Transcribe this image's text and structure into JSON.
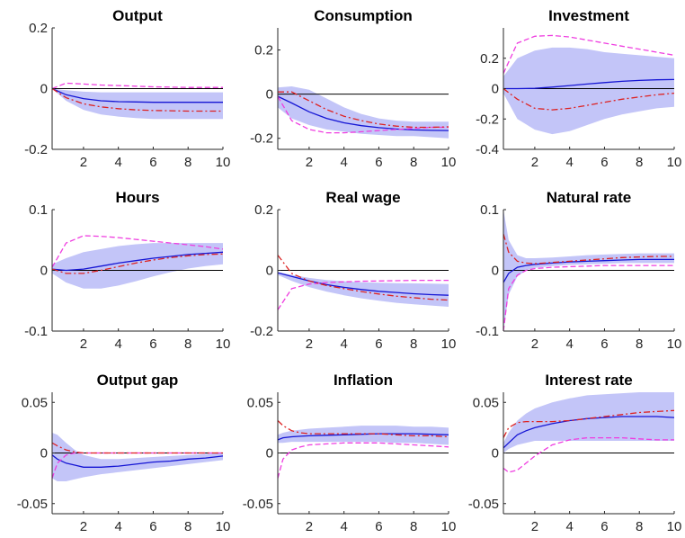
{
  "chart_data": [
    {
      "type": "line",
      "title": "Output",
      "x": [
        0.2,
        1,
        2,
        3,
        4,
        5,
        6,
        7,
        8,
        9,
        10
      ],
      "xlim": [
        0.2,
        10
      ],
      "ylim": [
        -0.2,
        0.2
      ],
      "xticks": [
        2,
        4,
        6,
        8,
        10
      ],
      "yticks": [
        -0.2,
        0,
        0.2
      ],
      "xtick_labels": [
        "2",
        "4",
        "6",
        "8",
        "10"
      ],
      "ytick_labels": [
        "-0.2",
        "0",
        "0.2"
      ],
      "band": {
        "lower": [
          0,
          -0.04,
          -0.07,
          -0.085,
          -0.092,
          -0.097,
          -0.1,
          -0.1,
          -0.1,
          -0.1,
          -0.1
        ],
        "upper": [
          0,
          -0.005,
          -0.01,
          -0.012,
          -0.012,
          -0.012,
          -0.012,
          -0.012,
          -0.012,
          -0.012,
          -0.012
        ]
      },
      "series": [
        {
          "style": "median",
          "values": [
            0,
            -0.02,
            -0.033,
            -0.04,
            -0.043,
            -0.044,
            -0.045,
            -0.045,
            -0.045,
            -0.045,
            -0.045
          ]
        },
        {
          "style": "dashed",
          "values": [
            0,
            0.018,
            0.015,
            0.012,
            0.01,
            0.008,
            0.006,
            0.005,
            0.004,
            0.004,
            0.004
          ]
        },
        {
          "style": "dashdot",
          "values": [
            0,
            -0.03,
            -0.05,
            -0.06,
            -0.066,
            -0.07,
            -0.072,
            -0.073,
            -0.074,
            -0.074,
            -0.074
          ]
        }
      ]
    },
    {
      "type": "line",
      "title": "Consumption",
      "x": [
        0.2,
        1,
        2,
        3,
        4,
        5,
        6,
        7,
        8,
        9,
        10
      ],
      "xlim": [
        0.2,
        10
      ],
      "ylim": [
        -0.25,
        0.3
      ],
      "xticks": [
        2,
        4,
        6,
        8,
        10
      ],
      "yticks": [
        -0.2,
        0,
        0.2
      ],
      "xtick_labels": [
        "2",
        "4",
        "6",
        "8",
        "10"
      ],
      "ytick_labels": [
        "-0.2",
        "0",
        "0.2"
      ],
      "band": {
        "lower": [
          -0.06,
          -0.11,
          -0.14,
          -0.16,
          -0.17,
          -0.18,
          -0.185,
          -0.19,
          -0.19,
          -0.195,
          -0.2
        ],
        "upper": [
          0.03,
          0.035,
          0.02,
          -0.02,
          -0.06,
          -0.09,
          -0.11,
          -0.12,
          -0.125,
          -0.125,
          -0.125
        ]
      },
      "series": [
        {
          "style": "median",
          "values": [
            -0.01,
            -0.04,
            -0.08,
            -0.11,
            -0.13,
            -0.143,
            -0.152,
            -0.158,
            -0.162,
            -0.164,
            -0.165
          ]
        },
        {
          "style": "dashed",
          "values": [
            -0.01,
            -0.12,
            -0.16,
            -0.175,
            -0.175,
            -0.17,
            -0.165,
            -0.16,
            -0.155,
            -0.15,
            -0.15
          ]
        },
        {
          "style": "dashdot",
          "values": [
            0.01,
            0.01,
            -0.03,
            -0.07,
            -0.1,
            -0.12,
            -0.135,
            -0.145,
            -0.15,
            -0.15,
            -0.148
          ]
        }
      ]
    },
    {
      "type": "line",
      "title": "Investment",
      "x": [
        0.2,
        1,
        2,
        3,
        4,
        5,
        6,
        7,
        8,
        9,
        10
      ],
      "xlim": [
        0.2,
        10
      ],
      "ylim": [
        -0.4,
        0.4
      ],
      "xticks": [
        2,
        4,
        6,
        8,
        10
      ],
      "yticks": [
        -0.4,
        -0.2,
        0,
        0.2
      ],
      "xtick_labels": [
        "2",
        "4",
        "6",
        "8",
        "10"
      ],
      "ytick_labels": [
        "-0.4",
        "-0.2",
        "0",
        "0.2"
      ],
      "band": {
        "lower": [
          -0.03,
          -0.2,
          -0.27,
          -0.3,
          -0.28,
          -0.24,
          -0.2,
          -0.17,
          -0.15,
          -0.13,
          -0.12
        ],
        "upper": [
          0.08,
          0.2,
          0.25,
          0.27,
          0.27,
          0.26,
          0.24,
          0.23,
          0.22,
          0.21,
          0.2
        ]
      },
      "series": [
        {
          "style": "median",
          "values": [
            0,
            0,
            0.002,
            0.01,
            0.02,
            0.03,
            0.04,
            0.048,
            0.054,
            0.058,
            0.06
          ]
        },
        {
          "style": "dashed",
          "values": [
            0.1,
            0.3,
            0.345,
            0.35,
            0.34,
            0.32,
            0.3,
            0.28,
            0.26,
            0.24,
            0.22
          ]
        },
        {
          "style": "dashdot",
          "values": [
            0,
            -0.07,
            -0.13,
            -0.14,
            -0.13,
            -0.11,
            -0.09,
            -0.07,
            -0.055,
            -0.04,
            -0.03
          ]
        }
      ]
    },
    {
      "type": "line",
      "title": "Hours",
      "x": [
        0.2,
        1,
        2,
        3,
        4,
        5,
        6,
        7,
        8,
        9,
        10
      ],
      "xlim": [
        0.2,
        10
      ],
      "ylim": [
        -0.1,
        0.1
      ],
      "xticks": [
        2,
        4,
        6,
        8,
        10
      ],
      "yticks": [
        -0.1,
        0,
        0.1
      ],
      "xtick_labels": [
        "2",
        "4",
        "6",
        "8",
        "10"
      ],
      "ytick_labels": [
        "-0.1",
        "0",
        "0.1"
      ],
      "band": {
        "lower": [
          -0.005,
          -0.02,
          -0.03,
          -0.03,
          -0.025,
          -0.018,
          -0.01,
          -0.003,
          0.003,
          0.007,
          0.01
        ],
        "upper": [
          0.01,
          0.02,
          0.03,
          0.035,
          0.04,
          0.043,
          0.045,
          0.045,
          0.045,
          0.045,
          0.045
        ]
      },
      "series": [
        {
          "style": "median",
          "values": [
            0.002,
            0,
            0.002,
            0.007,
            0.012,
            0.016,
            0.02,
            0.023,
            0.026,
            0.028,
            0.03
          ]
        },
        {
          "style": "dashed",
          "values": [
            0.005,
            0.045,
            0.057,
            0.056,
            0.054,
            0.051,
            0.048,
            0.045,
            0.042,
            0.039,
            0.035
          ]
        },
        {
          "style": "dashdot",
          "values": [
            0.002,
            -0.005,
            -0.005,
            0,
            0.006,
            0.012,
            0.017,
            0.021,
            0.024,
            0.026,
            0.027
          ]
        }
      ]
    },
    {
      "type": "line",
      "title": "Real wage",
      "x": [
        0.2,
        1,
        2,
        3,
        4,
        5,
        6,
        7,
        8,
        9,
        10
      ],
      "xlim": [
        0.2,
        10
      ],
      "ylim": [
        -0.2,
        0.2
      ],
      "xticks": [
        2,
        4,
        6,
        8,
        10
      ],
      "yticks": [
        -0.2,
        0,
        0.2
      ],
      "xtick_labels": [
        "2",
        "4",
        "6",
        "8",
        "10"
      ],
      "ytick_labels": [
        "-0.2",
        "0",
        "0.2"
      ],
      "band": {
        "lower": [
          -0.015,
          -0.035,
          -0.055,
          -0.07,
          -0.082,
          -0.092,
          -0.1,
          -0.107,
          -0.112,
          -0.116,
          -0.12
        ],
        "upper": [
          -0.005,
          -0.015,
          -0.025,
          -0.032,
          -0.036,
          -0.039,
          -0.041,
          -0.042,
          -0.043,
          -0.044,
          -0.045
        ]
      },
      "series": [
        {
          "style": "median",
          "values": [
            -0.008,
            -0.02,
            -0.035,
            -0.047,
            -0.056,
            -0.063,
            -0.069,
            -0.073,
            -0.077,
            -0.08,
            -0.082
          ]
        },
        {
          "style": "dashed",
          "values": [
            -0.13,
            -0.06,
            -0.045,
            -0.04,
            -0.038,
            -0.036,
            -0.035,
            -0.034,
            -0.033,
            -0.033,
            -0.033
          ]
        },
        {
          "style": "dashdot",
          "values": [
            0.05,
            -0.01,
            -0.035,
            -0.05,
            -0.06,
            -0.07,
            -0.078,
            -0.085,
            -0.09,
            -0.095,
            -0.098
          ]
        }
      ]
    },
    {
      "type": "line",
      "title": "Natural rate",
      "x": [
        0.2,
        0.5,
        1,
        1.5,
        2,
        3,
        4,
        5,
        6,
        7,
        8,
        9,
        10
      ],
      "xlim": [
        0.2,
        10
      ],
      "ylim": [
        -0.1,
        0.1
      ],
      "xticks": [
        2,
        4,
        6,
        8,
        10
      ],
      "yticks": [
        -0.1,
        0,
        0.1
      ],
      "xtick_labels": [
        "2",
        "4",
        "6",
        "8",
        "10"
      ],
      "ytick_labels": [
        "-0.1",
        "0",
        "0.1"
      ],
      "band": {
        "lower": [
          -0.1,
          -0.04,
          -0.01,
          0,
          0.004,
          0.007,
          0.009,
          0.01,
          0.011,
          0.012,
          0.012,
          0.012,
          0.012
        ],
        "upper": [
          0.1,
          0.05,
          0.025,
          0.02,
          0.02,
          0.021,
          0.023,
          0.025,
          0.026,
          0.027,
          0.028,
          0.028,
          0.028
        ]
      },
      "series": [
        {
          "style": "median",
          "values": [
            -0.02,
            -0.005,
            0.005,
            0.008,
            0.01,
            0.012,
            0.014,
            0.015,
            0.016,
            0.017,
            0.018,
            0.018,
            0.018
          ]
        },
        {
          "style": "dashed",
          "values": [
            -0.1,
            -0.03,
            -0.008,
            0,
            0.003,
            0.005,
            0.006,
            0.007,
            0.008,
            0.008,
            0.008,
            0.008,
            0.008
          ]
        },
        {
          "style": "dashdot",
          "values": [
            0.06,
            0.03,
            0.015,
            0.012,
            0.011,
            0.013,
            0.015,
            0.017,
            0.019,
            0.021,
            0.022,
            0.023,
            0.023
          ]
        }
      ]
    },
    {
      "type": "line",
      "title": "Output gap",
      "x": [
        0.2,
        0.5,
        1,
        1.5,
        2,
        3,
        4,
        5,
        6,
        7,
        8,
        9,
        10
      ],
      "xlim": [
        0.2,
        10
      ],
      "ylim": [
        -0.06,
        0.06
      ],
      "xticks": [
        2,
        4,
        6,
        8,
        10
      ],
      "yticks": [
        -0.05,
        0,
        0.05
      ],
      "xtick_labels": [
        "2",
        "4",
        "6",
        "8",
        "10"
      ],
      "ytick_labels": [
        "-0.05",
        "0",
        "0.05"
      ],
      "band": {
        "lower": [
          -0.025,
          -0.028,
          -0.028,
          -0.026,
          -0.024,
          -0.021,
          -0.019,
          -0.017,
          -0.015,
          -0.013,
          -0.011,
          -0.009,
          -0.007
        ],
        "upper": [
          0.02,
          0.018,
          0.01,
          0.003,
          -0.002,
          -0.006,
          -0.006,
          -0.005,
          -0.004,
          -0.003,
          -0.002,
          -0.001,
          0
        ]
      },
      "series": [
        {
          "style": "median",
          "values": [
            -0.002,
            -0.006,
            -0.01,
            -0.012,
            -0.014,
            -0.014,
            -0.013,
            -0.011,
            -0.009,
            -0.008,
            -0.006,
            -0.005,
            -0.003
          ]
        },
        {
          "style": "dashed",
          "values": [
            -0.025,
            -0.01,
            -0.002,
            0,
            0,
            0,
            0,
            0,
            0,
            0,
            0,
            0,
            0
          ]
        },
        {
          "style": "dashdot",
          "values": [
            0.01,
            0.007,
            0.003,
            0.001,
            0,
            0,
            0,
            0,
            0,
            0,
            0,
            0,
            0
          ]
        }
      ]
    },
    {
      "type": "line",
      "title": "Inflation",
      "x": [
        0.2,
        0.5,
        1,
        1.5,
        2,
        3,
        4,
        5,
        6,
        7,
        8,
        9,
        10
      ],
      "xlim": [
        0.2,
        10
      ],
      "ylim": [
        -0.06,
        0.06
      ],
      "xticks": [
        2,
        4,
        6,
        8,
        10
      ],
      "yticks": [
        -0.05,
        0,
        0.05
      ],
      "xtick_labels": [
        "2",
        "4",
        "6",
        "8",
        "10"
      ],
      "ytick_labels": [
        "-0.05",
        "0",
        "0.05"
      ],
      "band": {
        "lower": [
          0.01,
          0.01,
          0.011,
          0.011,
          0.011,
          0.011,
          0.011,
          0.011,
          0.011,
          0.01,
          0.01,
          0.009,
          0.008
        ],
        "upper": [
          0.018,
          0.02,
          0.022,
          0.023,
          0.024,
          0.025,
          0.026,
          0.027,
          0.027,
          0.027,
          0.026,
          0.026,
          0.025
        ]
      },
      "series": [
        {
          "style": "median",
          "values": [
            0.013,
            0.015,
            0.016,
            0.0165,
            0.017,
            0.0175,
            0.018,
            0.0185,
            0.019,
            0.019,
            0.019,
            0.0185,
            0.018
          ]
        },
        {
          "style": "dashed",
          "values": [
            -0.025,
            -0.006,
            0.003,
            0.006,
            0.008,
            0.009,
            0.01,
            0.01,
            0.01,
            0.009,
            0.008,
            0.007,
            0.006
          ]
        },
        {
          "style": "dashdot",
          "values": [
            0.032,
            0.027,
            0.022,
            0.02,
            0.019,
            0.019,
            0.019,
            0.019,
            0.019,
            0.018,
            0.017,
            0.017,
            0.016
          ]
        }
      ]
    },
    {
      "type": "line",
      "title": "Interest rate",
      "x": [
        0.2,
        0.5,
        1,
        1.5,
        2,
        3,
        4,
        5,
        6,
        7,
        8,
        9,
        10
      ],
      "xlim": [
        0.2,
        10
      ],
      "ylim": [
        -0.06,
        0.06
      ],
      "xticks": [
        2,
        4,
        6,
        8,
        10
      ],
      "yticks": [
        -0.05,
        0,
        0.05
      ],
      "xtick_labels": [
        "2",
        "4",
        "6",
        "8",
        "10"
      ],
      "ytick_labels": [
        "-0.05",
        "0",
        "0.05"
      ],
      "band": {
        "lower": [
          0,
          0.004,
          0.008,
          0.01,
          0.012,
          0.012,
          0.012,
          0.012,
          0.012,
          0.012,
          0.012,
          0.012,
          0.012
        ],
        "upper": [
          0.01,
          0.02,
          0.032,
          0.039,
          0.044,
          0.05,
          0.054,
          0.057,
          0.058,
          0.059,
          0.06,
          0.06,
          0.06
        ]
      },
      "series": [
        {
          "style": "median",
          "values": [
            0.005,
            0.01,
            0.018,
            0.022,
            0.025,
            0.029,
            0.032,
            0.034,
            0.035,
            0.036,
            0.036,
            0.036,
            0.035
          ]
        },
        {
          "style": "dashed",
          "values": [
            -0.015,
            -0.019,
            -0.017,
            -0.01,
            -0.003,
            0.008,
            0.013,
            0.015,
            0.015,
            0.015,
            0.014,
            0.013,
            0.013
          ]
        },
        {
          "style": "dashdot",
          "values": [
            0.015,
            0.025,
            0.03,
            0.031,
            0.031,
            0.031,
            0.032,
            0.034,
            0.036,
            0.038,
            0.04,
            0.041,
            0.042
          ]
        }
      ]
    }
  ],
  "colors": {
    "band": "#c3c5f8",
    "median": "#1515d4",
    "dashed": "#ef3de0",
    "dashdot": "#dd2222",
    "zero_line": "#000000",
    "axis": "#262626"
  }
}
